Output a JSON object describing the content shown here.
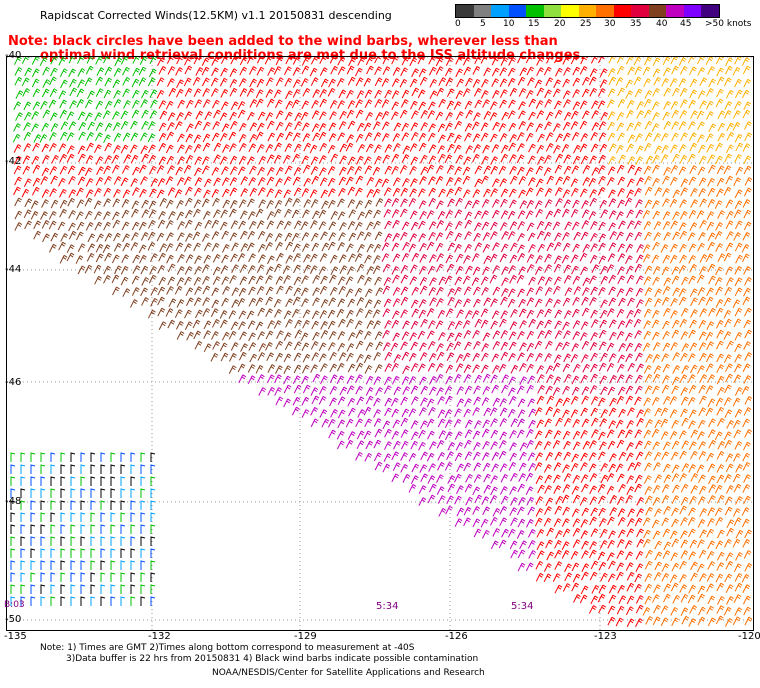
{
  "header": {
    "title": "Rapidscat Corrected Winds(12.5KM) v1.1 20150831 descending",
    "note_line1": "Note: black circles have been added to the wind barbs, wherever less than",
    "note_line2": "optimal wind retrieval conditions are met due to the ISS altitude changes."
  },
  "color_scale": {
    "colors": [
      "#3a3a3a",
      "#808080",
      "#00a0ff",
      "#0050ff",
      "#00c000",
      "#90e040",
      "#ffff00",
      "#ffb000",
      "#ff7000",
      "#ff0000",
      "#e00040",
      "#804020",
      "#c000c0",
      "#8000ff",
      "#400080"
    ],
    "labels": [
      "0",
      "5",
      "10",
      "15",
      "20",
      "25",
      "30",
      "35",
      "40",
      "45",
      ">50 knots"
    ]
  },
  "axes": {
    "longitudes": [
      "-135",
      "-132",
      "-129",
      "-126",
      "-123",
      "-120"
    ],
    "latitudes": [
      "-40",
      "-42",
      "-44",
      "-46",
      "-48",
      "-50"
    ]
  },
  "time_labels": [
    "5:34",
    "5:34"
  ],
  "corner_label": "B:03",
  "footer": {
    "note1": "Note: 1) Times are GMT 2)Times along bottom correspond to measurement at -40S",
    "note2": "3)Data buffer is 22 hrs from 20150831 4) Black wind barbs indicate possible contamination",
    "credit": "NOAA/NESDIS/Center for Satellite Applications and Research"
  }
}
